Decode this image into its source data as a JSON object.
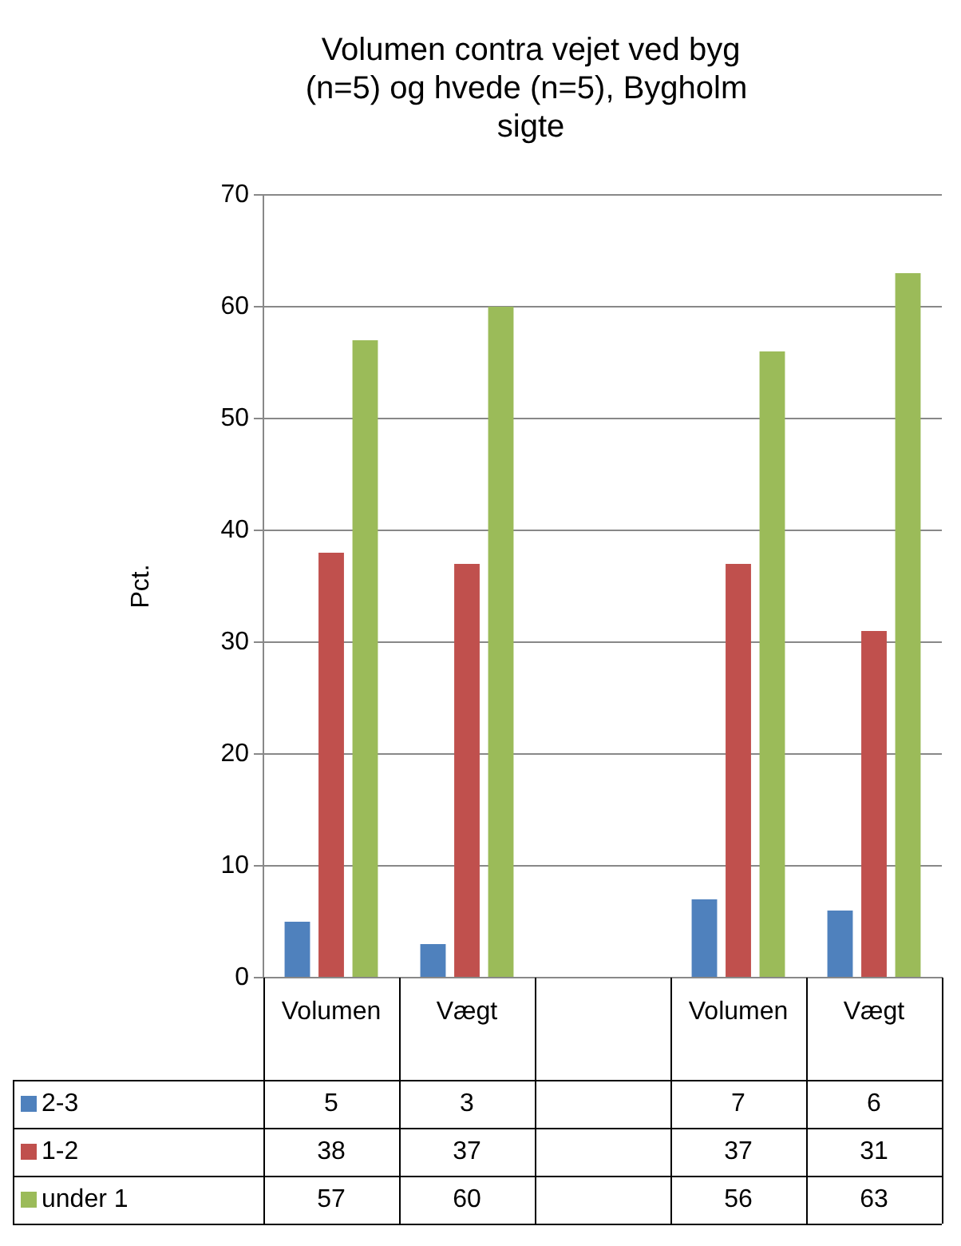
{
  "chart_data": {
    "type": "bar",
    "title": "Volumen contra vejet ved byg (n=5) og hvede (n=5), Bygholm  sigte",
    "ylabel": "Pct.",
    "categories": [
      "Volumen",
      "Vægt",
      null,
      "Volumen",
      "Vægt"
    ],
    "series": [
      {
        "name": "2-3",
        "color": "#4f81bd",
        "values": [
          5,
          3,
          null,
          7,
          6
        ]
      },
      {
        "name": "1-2",
        "color": "#c0504d",
        "values": [
          38,
          37,
          null,
          37,
          31
        ]
      },
      {
        "name": "under 1",
        "color": "#9bbb59",
        "values": [
          57,
          60,
          null,
          56,
          63
        ]
      }
    ],
    "ylim": [
      0,
      70
    ],
    "yticks": [
      0,
      10,
      20,
      30,
      40,
      50,
      60,
      70
    ],
    "grid": "y",
    "data_labels": true,
    "legend": "bottom"
  }
}
